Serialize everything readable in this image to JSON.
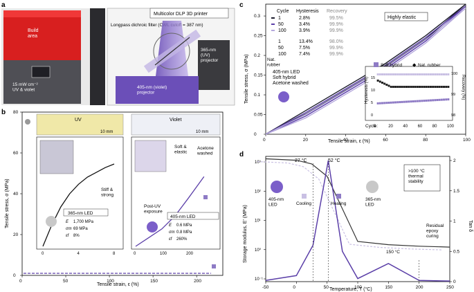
{
  "panel_a": {
    "label": "a",
    "build_area": "Build\narea",
    "uv_violet": "15 mW cm⁻²\nUV & violet",
    "printer_title": "Multicolor DLP 3D printer",
    "filter_label": "Longpass dichroic filter (CWL cutoff = 387 nm)",
    "uv_projector": "365-nm\n(UV)\nprojector",
    "violet_projector": "405-nm (violet)\nprojector"
  },
  "panel_b": {
    "label": "b",
    "uv_label": "UV",
    "violet_label": "Violet",
    "scale": "10 mm",
    "stiff": "Stiff &\nstrong",
    "soft": "Soft &\nelastic",
    "acetone": "Acetone\nwashed",
    "post_uv": "Post-UV\nexposure",
    "led365": "365-nm LED",
    "led405": "405-nm LED",
    "props365": {
      "E": "1,700 MPa",
      "sigma": "69 MPa",
      "eps": "8%"
    },
    "props405": {
      "E": "0.6 MPa",
      "sigma": "0.8 MPa",
      "eps": "260%"
    },
    "ylabel": "Tensile stress, σ (MPa)",
    "xlabel": "Tensile strain, ε (%)"
  },
  "panel_c": {
    "label": "c",
    "highly_elastic": "Highly elastic",
    "table_headers": [
      "Cycle",
      "Hysteresis",
      "Recovery"
    ],
    "soft_hybrid_rows": [
      [
        "1",
        "2.8%",
        "99.5%"
      ],
      [
        "50",
        "3.4%",
        "99.9%"
      ],
      [
        "100",
        "3.9%",
        "99.9%"
      ]
    ],
    "nat_rubber_label": "Nat.\nrubber",
    "nat_rubber_rows": [
      [
        "1",
        "13.4%",
        "98.0%"
      ],
      [
        "50",
        "7.5%",
        "99.9%"
      ],
      [
        "100",
        "7.4%",
        "99.9%"
      ]
    ],
    "led_note": "405-nm LED\nSoft hybrid\nAcetone washed",
    "legend_soft": "Soft hybrid",
    "legend_nat": "Nat. rubber",
    "inset_ylabel_left": "Hysteresis (%)",
    "inset_ylabel_right": "Recovery (%)",
    "inset_xlabel": "Cycle:",
    "ylabel": "Tensile stress, σ (MPa)",
    "xlabel": "Tensile strain, ε (%)"
  },
  "panel_d": {
    "label": "d",
    "t27": "27 °C",
    "t52": "52 °C",
    "stability": ">100 °C\nthermal\nstability",
    "led405": "405-nm\nLED",
    "led365": "365-nm\nLED",
    "cooling": "Cooling",
    "heating": "Heating",
    "residual": "Residual\nepoxy\ncuring",
    "t150": "150 °C",
    "ylabel": "Storage modulus, E′ (MPa)",
    "y2label": "Tan δ",
    "xlabel": "Temperature, T (°C)"
  },
  "chart_data": [
    {
      "type": "line",
      "panel": "b",
      "xlabel": "Tensile strain, ε (%)",
      "ylabel": "Tensile stress, σ (MPa)",
      "xlim": [
        0,
        230
      ],
      "ylim": [
        0,
        80
      ],
      "xticks": [
        0,
        50,
        100,
        150,
        200
      ],
      "yticks": [
        0,
        20,
        40,
        60,
        80
      ],
      "inset_uv": {
        "xlim": [
          0,
          8
        ],
        "xticks": [
          0,
          4,
          8
        ],
        "ylim": [
          0,
          80
        ]
      },
      "inset_violet": {
        "xlim": [
          0,
          300
        ],
        "xticks": [
          0,
          100,
          200
        ],
        "ylim": [
          0,
          1
        ]
      },
      "series": [
        {
          "x": [
            0,
            1,
            2,
            3,
            4,
            5,
            6,
            7,
            8
          ],
          "y": [
            0,
            18,
            33,
            44,
            52,
            58,
            62,
            66,
            69
          ]
        },
        {
          "x": [
            0,
            50,
            100,
            150,
            200,
            260
          ],
          "y": [
            0,
            0.1,
            0.2,
            0.35,
            0.55,
            0.8
          ]
        }
      ]
    },
    {
      "type": "line",
      "panel": "c",
      "xlabel": "Tensile strain, ε (%)",
      "ylabel": "Tensile stress, σ (MPa)",
      "xlim": [
        0,
        100
      ],
      "ylim": [
        0,
        0.33
      ],
      "xticks": [
        0,
        20,
        40,
        60,
        80,
        100
      ],
      "yticks": [
        0,
        0.05,
        0.1,
        0.15,
        0.2,
        0.25,
        0.3
      ],
      "series": [
        {
          "name": "1",
          "x": [
            0,
            20,
            40,
            60,
            80,
            100
          ],
          "y": [
            0,
            0.06,
            0.12,
            0.18,
            0.25,
            0.33
          ]
        },
        {
          "name": "50",
          "x": [
            0,
            20,
            40,
            60,
            80,
            100
          ],
          "y": [
            0,
            0.055,
            0.115,
            0.175,
            0.245,
            0.325
          ]
        },
        {
          "name": "100",
          "x": [
            0,
            20,
            40,
            60,
            80,
            100
          ],
          "y": [
            0,
            0.05,
            0.11,
            0.17,
            0.24,
            0.32
          ]
        }
      ],
      "inset": {
        "xticks": [
          0,
          20,
          40,
          60,
          80,
          100
        ],
        "hysteresis_ticks": [
          0,
          5,
          10,
          15
        ],
        "recovery_ticks": [
          98,
          99,
          100
        ]
      }
    },
    {
      "type": "line",
      "panel": "d",
      "xlabel": "Temperature, T (°C)",
      "ylabel": "Storage modulus, E′ (MPa)",
      "y2label": "Tan δ",
      "xlim": [
        -50,
        250
      ],
      "xticks": [
        -50,
        0,
        50,
        100,
        150,
        200,
        250
      ],
      "yticks_log": [
        "10⁻¹",
        "10⁰",
        "10¹",
        "10²",
        "10³"
      ],
      "y2ticks": [
        0,
        0.5,
        1,
        1.5,
        2
      ],
      "series": [
        {
          "x": [
            -50,
            0,
            25,
            50,
            100,
            150,
            200,
            250
          ],
          "y": [
            4000,
            3500,
            2500,
            800,
            2,
            1.5,
            1.3,
            1.2
          ]
        },
        {
          "x": [
            -50,
            0,
            27,
            52,
            75,
            100,
            150,
            200,
            250
          ],
          "y": [
            0.02,
            0.1,
            0.6,
            2.0,
            0.5,
            0.05,
            0.3,
            0.02,
            0.01
          ]
        }
      ]
    }
  ]
}
